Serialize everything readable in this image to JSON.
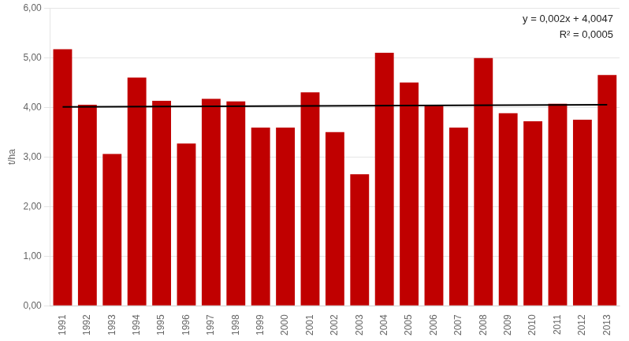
{
  "chart_data": {
    "type": "bar",
    "categories": [
      "1991",
      "1992",
      "1993",
      "1994",
      "1995",
      "1996",
      "1997",
      "1998",
      "1999",
      "2000",
      "2001",
      "2002",
      "2003",
      "2004",
      "2005",
      "2006",
      "2007",
      "2008",
      "2009",
      "2010",
      "2011",
      "2012",
      "2013"
    ],
    "series": [
      {
        "type": "bar",
        "color": "#c00000",
        "values": [
          5.17,
          4.05,
          3.06,
          4.6,
          4.13,
          3.27,
          4.17,
          4.12,
          3.59,
          3.59,
          4.3,
          3.5,
          2.65,
          5.1,
          4.5,
          4.03,
          3.59,
          4.99,
          3.88,
          3.72,
          4.07,
          3.75,
          4.65
        ]
      },
      {
        "type": "line",
        "color": "#000000",
        "values": [
          4.0067,
          null,
          null,
          null,
          null,
          null,
          null,
          null,
          null,
          null,
          null,
          null,
          null,
          null,
          null,
          null,
          null,
          null,
          null,
          null,
          null,
          null,
          4.0507
        ]
      }
    ],
    "ylabel": "t/ha",
    "ylim": [
      0,
      6
    ],
    "yticks": [
      {
        "value": 0,
        "label": "0,00"
      },
      {
        "value": 1,
        "label": "1,00"
      },
      {
        "value": 2,
        "label": "2,00"
      },
      {
        "value": 3,
        "label": "3,00"
      },
      {
        "value": 4,
        "label": "4,00"
      },
      {
        "value": 5,
        "label": "5,00"
      },
      {
        "value": 6,
        "label": "6,00"
      }
    ],
    "annotation": "y = 0,002x + 4,0047\nR² = 0,0005",
    "grid": true
  }
}
